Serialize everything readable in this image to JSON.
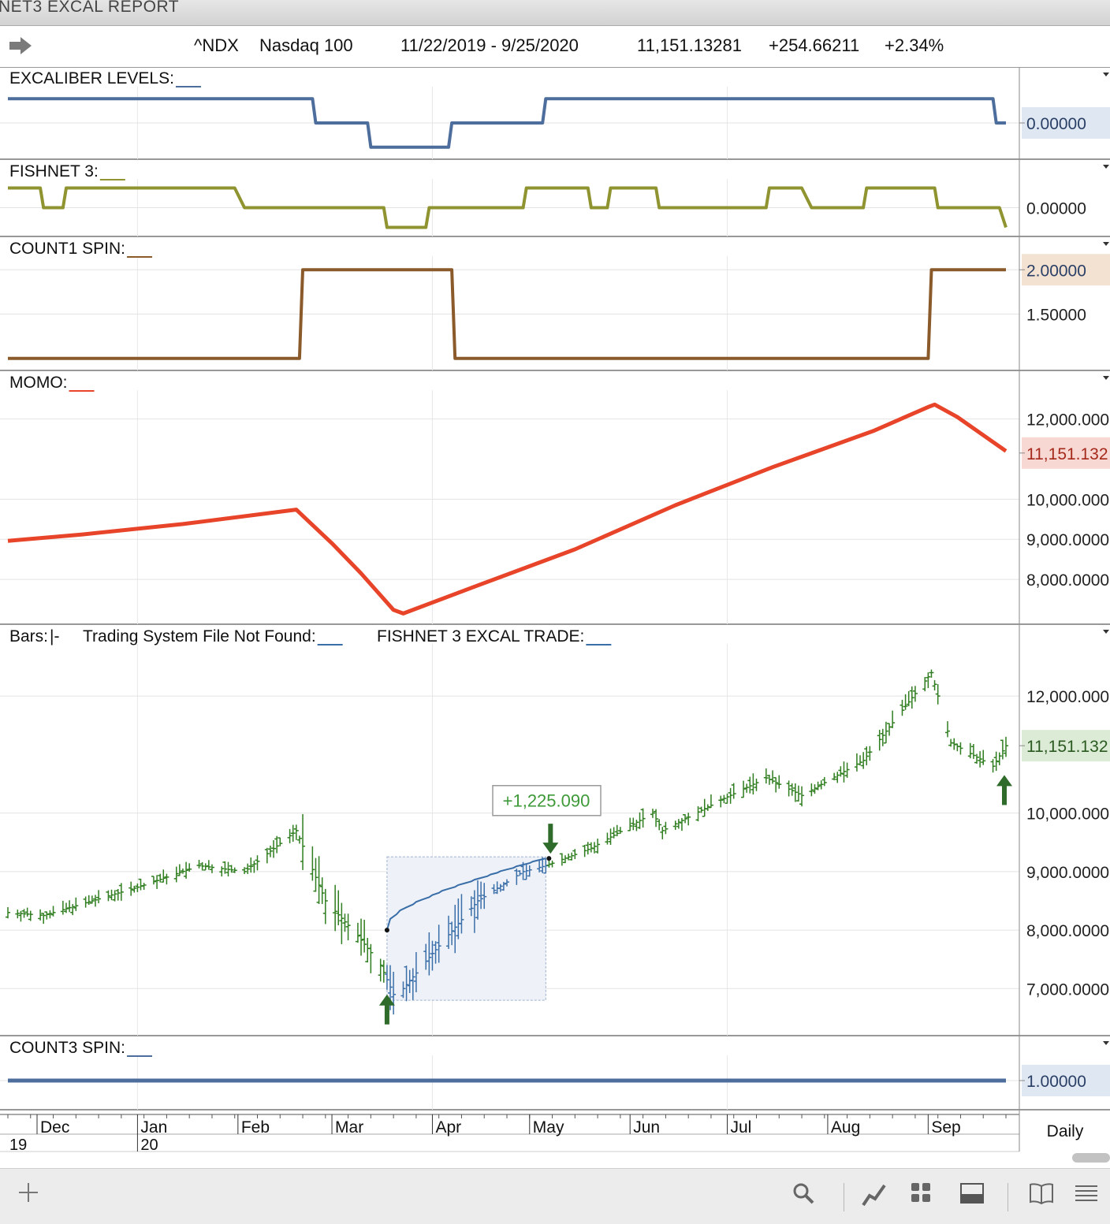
{
  "window": {
    "title": "NET3 EXCAL REPORT"
  },
  "header": {
    "symbol": "^NDX",
    "name": "Nasdaq 100",
    "date_range": "11/22/2019 - 9/25/2020",
    "last": "11,151.13281",
    "change": "+254.66211",
    "change_pct": "+2.34%"
  },
  "period": "Daily",
  "colors": {
    "excaliber": "#4d6e9c",
    "fishnet": "#8f9430",
    "count1": "#8b5a2b",
    "momo": "#e8442a",
    "up_bar": "#2e7d1e",
    "trade_bar": "#3a6ea8",
    "count3": "#4d6e9c",
    "trade_label": "#3f9a3a"
  },
  "icons": [
    "forward-arrow-icon",
    "plus-icon",
    "search-icon",
    "chart-line-icon",
    "grid-icon",
    "panel-icon",
    "book-icon",
    "menu-icon",
    "dropdown-icon"
  ],
  "chart_data": [
    {
      "type": "line",
      "panel": "EXCALIBER LEVELS",
      "title": "EXCALIBER LEVELS:",
      "x": [
        "2019-11-22",
        "2020-02-24",
        "2020-02-25",
        "2020-03-12",
        "2020-03-13",
        "2020-04-06",
        "2020-04-07",
        "2020-05-05",
        "2020-05-06",
        "2020-09-21",
        "2020-09-22",
        "2020-09-25"
      ],
      "values": [
        1,
        1,
        0,
        0,
        -1,
        -1,
        0,
        0,
        1,
        1,
        0,
        0
      ],
      "ylim": [
        -1.3,
        1.3
      ],
      "yticks": [
        "0.00000"
      ],
      "last_label": "0.00000"
    },
    {
      "type": "line",
      "panel": "FISHNET 3",
      "title": "FISHNET 3:",
      "x": [
        "2019-11-22",
        "2019-12-02",
        "2019-12-03",
        "2019-12-09",
        "2019-12-10",
        "2020-01-31",
        "2020-02-03",
        "2020-03-17",
        "2020-03-18",
        "2020-03-30",
        "2020-03-31",
        "2020-04-29",
        "2020-04-30",
        "2020-05-19",
        "2020-05-20",
        "2020-05-25",
        "2020-05-26",
        "2020-06-09",
        "2020-06-10",
        "2020-07-13",
        "2020-07-14",
        "2020-07-24",
        "2020-07-27",
        "2020-08-12",
        "2020-08-13",
        "2020-09-03",
        "2020-09-04",
        "2020-09-23",
        "2020-09-25"
      ],
      "values": [
        1,
        1,
        0,
        0,
        1,
        1,
        0,
        0,
        -1,
        -1,
        0,
        0,
        1,
        1,
        0,
        0,
        1,
        1,
        0,
        0,
        1,
        1,
        0,
        0,
        1,
        1,
        0,
        0,
        -1
      ],
      "ylim": [
        -1.3,
        1.3
      ],
      "yticks": [
        "0.00000"
      ]
    },
    {
      "type": "line",
      "panel": "COUNT1 SPIN",
      "title": "COUNT1 SPIN:",
      "x": [
        "2019-11-22",
        "2020-02-20",
        "2020-02-21",
        "2020-04-07",
        "2020-04-08",
        "2020-09-01",
        "2020-09-02",
        "2020-09-25"
      ],
      "values": [
        1,
        1,
        2,
        2,
        1,
        1,
        2,
        2
      ],
      "ylim": [
        0.9,
        2.1
      ],
      "yticks": [
        "1.50000",
        "2.00000"
      ],
      "last_label": "2.00000"
    },
    {
      "type": "line",
      "panel": "MOMO",
      "title": "MOMO:",
      "x": [
        "2019-11-22",
        "2019-12-15",
        "2020-01-15",
        "2020-02-19",
        "2020-03-01",
        "2020-03-10",
        "2020-03-20",
        "2020-03-23",
        "2020-04-15",
        "2020-05-15",
        "2020-06-15",
        "2020-07-15",
        "2020-08-15",
        "2020-09-01",
        "2020-09-03",
        "2020-09-10",
        "2020-09-25"
      ],
      "values": [
        8960,
        9120,
        9380,
        9740,
        8900,
        8150,
        7240,
        7150,
        7850,
        8750,
        9850,
        10800,
        11700,
        12300,
        12360,
        12050,
        11200
      ],
      "ylim": [
        7000,
        12700
      ],
      "yticks": [
        "8,000.0000",
        "9,000.0000",
        "10,000.000",
        "12,000.000"
      ],
      "last_label": "11,151.132"
    },
    {
      "type": "ohlc",
      "panel": "Bars",
      "title": "Bars:",
      "legend": [
        "Trading System File Not Found:",
        "FISHNET 3 EXCAL TRADE:"
      ],
      "x": [
        "2019-11-22",
        "2019-12-03",
        "2019-12-15",
        "2020-01-02",
        "2020-01-20",
        "2020-02-03",
        "2020-02-19",
        "2020-02-28",
        "2020-03-09",
        "2020-03-16",
        "2020-03-20",
        "2020-03-23",
        "2020-04-01",
        "2020-04-15",
        "2020-04-29",
        "2020-05-06",
        "2020-05-20",
        "2020-06-08",
        "2020-06-11",
        "2020-06-30",
        "2020-07-13",
        "2020-07-24",
        "2020-08-12",
        "2020-09-02",
        "2020-09-08",
        "2020-09-21",
        "2020-09-25"
      ],
      "close": [
        8300,
        8250,
        8450,
        8750,
        9100,
        9000,
        9700,
        8500,
        7900,
        7400,
        6900,
        7000,
        7600,
        8500,
        9000,
        9100,
        9400,
        10000,
        9700,
        10250,
        10600,
        10300,
        10900,
        12400,
        11200,
        10800,
        11151
      ],
      "ylim": [
        6600,
        12500
      ],
      "yticks": [
        "7,000.0000",
        "8,000.0000",
        "9,000.0000",
        "10,000.000",
        "12,000.000"
      ],
      "last_label": "11,151.132",
      "trade": {
        "entry_date": "2020-03-18",
        "entry_price": 8000,
        "exit_date": "2020-05-06",
        "exit_price": 9225,
        "profit_label": "+1,225.090"
      }
    },
    {
      "type": "line",
      "panel": "COUNT3 SPIN",
      "title": "COUNT3 SPIN:",
      "x": [
        "2019-11-22",
        "2020-09-25"
      ],
      "values": [
        1,
        1
      ],
      "ylim": [
        0,
        2
      ],
      "yticks": [
        "1.00000"
      ],
      "last_label": "1.00000"
    }
  ],
  "x_axis": {
    "months": [
      "Dec",
      "Jan",
      "Feb",
      "Mar",
      "Apr",
      "May",
      "Jun",
      "Jul",
      "Aug",
      "Sep"
    ],
    "years": [
      "19",
      "20"
    ]
  }
}
